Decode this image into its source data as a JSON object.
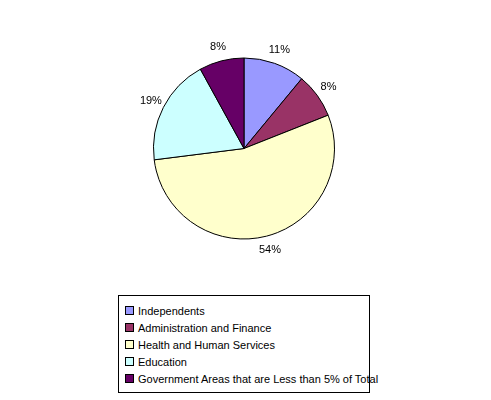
{
  "chart_data": {
    "type": "pie",
    "categories": [
      "Independents",
      "Administration and Finance",
      "Health and Human Services",
      "Education",
      "Government Areas that are Less than 5% of Total"
    ],
    "values": [
      11,
      8,
      54,
      19,
      8
    ],
    "value_labels": [
      "11%",
      "8%",
      "54%",
      "19%",
      "8%"
    ],
    "colors": [
      "#9999ff",
      "#993366",
      "#ffffcc",
      "#ccffff",
      "#660066"
    ],
    "data_labels": true,
    "legend": "bottom"
  }
}
